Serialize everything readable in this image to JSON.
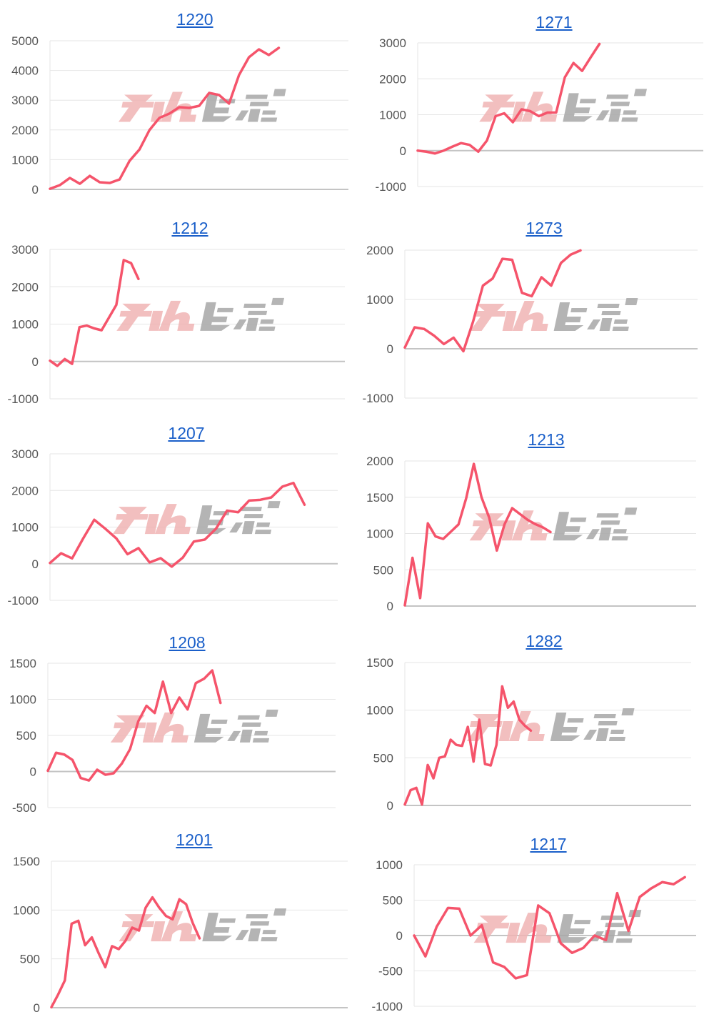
{
  "watermark": {
    "text": "みんレポ",
    "pink": "#f0b4b4",
    "gray": "#a8a8a8"
  },
  "line_color": "#f5546b",
  "chart_data": [
    {
      "type": "line",
      "title": "1220",
      "ylim": [
        0,
        5000
      ],
      "yticks": [
        "0",
        "1000",
        "2000",
        "3000",
        "4000",
        "5000"
      ],
      "xlim": [
        0,
        30
      ],
      "grid": true,
      "values": [
        20,
        145,
        385,
        190,
        455,
        240,
        215,
        335,
        960,
        1345,
        1995,
        2405,
        2550,
        2765,
        2740,
        2810,
        3245,
        3175,
        2885,
        3845,
        4445,
        4710,
        4520,
        4760
      ]
    },
    {
      "type": "line",
      "title": "1271",
      "ylim": [
        -1000,
        3000
      ],
      "yticks": [
        "-1000",
        "0",
        "1000",
        "2000",
        "3000"
      ],
      "xlim": [
        0,
        33
      ],
      "grid": true,
      "values": [
        0,
        -30,
        -80,
        0,
        110,
        210,
        160,
        -30,
        280,
        960,
        1040,
        790,
        1150,
        1100,
        960,
        1060,
        1060,
        2040,
        2440,
        2220,
        2600,
        2970
      ]
    },
    {
      "type": "line",
      "title": "1212",
      "ylim": [
        -1000,
        3000
      ],
      "yticks": [
        "-1000",
        "0",
        "1000",
        "2000",
        "3000"
      ],
      "xlim": [
        0,
        40
      ],
      "grid": true,
      "values": [
        20,
        -120,
        65,
        -65,
        920,
        960,
        885,
        835,
        1175,
        1515,
        2715,
        2635,
        2210
      ]
    },
    {
      "type": "line",
      "title": "1273",
      "ylim": [
        -1000,
        2000
      ],
      "yticks": [
        "-1000",
        "0",
        "1000",
        "2000"
      ],
      "xlim": [
        0,
        30
      ],
      "grid": true,
      "values": [
        25,
        435,
        400,
        265,
        95,
        225,
        -50,
        555,
        1280,
        1425,
        1825,
        1805,
        1135,
        1065,
        1450,
        1280,
        1740,
        1910,
        1995
      ]
    },
    {
      "type": "line",
      "title": "1207",
      "ylim": [
        -1000,
        3000
      ],
      "yticks": [
        "-1000",
        "0",
        "1000",
        "2000",
        "3000"
      ],
      "xlim": [
        0,
        26
      ],
      "grid": true,
      "values": [
        20,
        285,
        145,
        690,
        1200,
        955,
        690,
        260,
        425,
        35,
        150,
        -80,
        165,
        605,
        660,
        955,
        1450,
        1405,
        1725,
        1745,
        1810,
        2105,
        2205,
        1610
      ]
    },
    {
      "type": "line",
      "title": "1213",
      "ylim": [
        0,
        2000
      ],
      "yticks": [
        "0",
        "500",
        "1000",
        "1500",
        "2000"
      ],
      "xlim": [
        0,
        38
      ],
      "grid": true,
      "values": [
        10,
        665,
        110,
        1140,
        960,
        925,
        1025,
        1125,
        1485,
        1960,
        1500,
        1220,
        765,
        1125,
        1350,
        1270,
        1190,
        1130,
        1085,
        1020
      ]
    },
    {
      "type": "line",
      "title": "1208",
      "ylim": [
        -500,
        1500
      ],
      "yticks": [
        "-500",
        "0",
        "500",
        "1000",
        "1500"
      ],
      "xlim": [
        0,
        35
      ],
      "grid": true,
      "values": [
        10,
        260,
        235,
        160,
        -90,
        -125,
        25,
        -45,
        -25,
        110,
        310,
        695,
        910,
        810,
        1245,
        810,
        1025,
        860,
        1225,
        1285,
        1400,
        950
      ]
    },
    {
      "type": "line",
      "title": "1282",
      "ylim": [
        0,
        1500
      ],
      "yticks": [
        "0",
        "500",
        "1000",
        "1500"
      ],
      "xlim": [
        0,
        50
      ],
      "grid": true,
      "values": [
        10,
        160,
        185,
        10,
        425,
        285,
        500,
        515,
        690,
        635,
        625,
        825,
        460,
        900,
        435,
        420,
        635,
        1250,
        1025,
        1090,
        900,
        835,
        785
      ]
    },
    {
      "type": "line",
      "title": "1201",
      "ylim": [
        0,
        1500
      ],
      "yticks": [
        "0",
        "500",
        "1000",
        "1500"
      ],
      "xlim": [
        0,
        44
      ],
      "grid": true,
      "values": [
        5,
        135,
        280,
        860,
        890,
        640,
        720,
        560,
        415,
        630,
        600,
        685,
        820,
        790,
        1025,
        1130,
        1025,
        940,
        905,
        1110,
        1060,
        865,
        710
      ]
    },
    {
      "type": "line",
      "title": "1217",
      "ylim": [
        -1000,
        1000
      ],
      "yticks": [
        "-1000",
        "-500",
        "0",
        "500",
        "1000"
      ],
      "xlim": [
        0,
        25
      ],
      "grid": true,
      "values": [
        0,
        -295,
        125,
        390,
        380,
        0,
        145,
        -380,
        -445,
        -605,
        -560,
        425,
        315,
        -110,
        -245,
        -175,
        0,
        -65,
        600,
        65,
        545,
        665,
        755,
        725,
        825
      ]
    }
  ]
}
